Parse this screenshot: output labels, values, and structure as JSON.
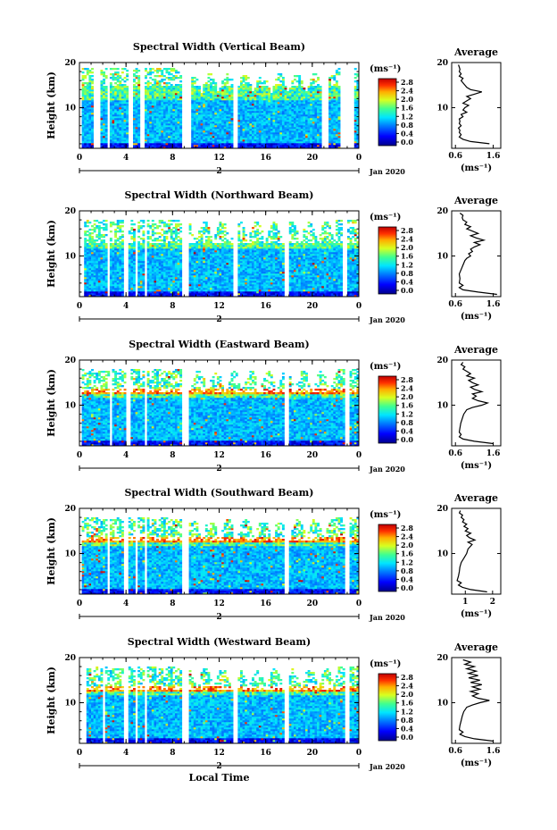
{
  "chart_data": [
    {
      "type": "heatmap",
      "title": "Spectral Width (Vertical Beam)",
      "ylabel": "Height (km)",
      "yticks": [
        "20",
        "10"
      ],
      "xticks": [
        "0",
        "4",
        "8",
        "12",
        "16",
        "20",
        "0"
      ],
      "xlim": [
        0,
        24
      ],
      "ylim": [
        1,
        20
      ],
      "date_marker": "2",
      "date_label": "Jan 2020",
      "colorbar": {
        "unit": "(ms⁻¹)",
        "ticks": [
          "2.8",
          "2.4",
          "2.0",
          "1.6",
          "1.2",
          "0.8",
          "0.4",
          "0.0"
        ]
      },
      "avg": {
        "title": "Average",
        "xticks": [
          "0.6",
          "1.6"
        ],
        "xlim": [
          0.5,
          1.8
        ],
        "xlabel": "(ms⁻¹)",
        "yticks": [
          "20",
          "10"
        ],
        "profile": [
          [
            1.5,
            2
          ],
          [
            1.0,
            2.5
          ],
          [
            0.8,
            3
          ],
          [
            0.7,
            3.5
          ],
          [
            0.75,
            4
          ],
          [
            0.7,
            4.5
          ],
          [
            0.72,
            5
          ],
          [
            0.68,
            5.5
          ],
          [
            0.75,
            6
          ],
          [
            0.7,
            6.5
          ],
          [
            0.72,
            7
          ],
          [
            0.7,
            7.5
          ],
          [
            0.8,
            8
          ],
          [
            0.75,
            8.5
          ],
          [
            0.9,
            9
          ],
          [
            0.8,
            9.5
          ],
          [
            0.85,
            10
          ],
          [
            0.95,
            10.5
          ],
          [
            0.8,
            11
          ],
          [
            0.9,
            11.5
          ],
          [
            1.0,
            12
          ],
          [
            0.9,
            12.5
          ],
          [
            1.1,
            13
          ],
          [
            1.3,
            13.5
          ],
          [
            1.0,
            14
          ],
          [
            0.9,
            14.5
          ],
          [
            0.85,
            15
          ],
          [
            0.8,
            15.5
          ],
          [
            0.75,
            16
          ],
          [
            0.8,
            16.5
          ],
          [
            0.7,
            17
          ],
          [
            0.75,
            17.5
          ],
          [
            0.7,
            18
          ],
          [
            0.72,
            18.5
          ],
          [
            0.7,
            19
          ],
          [
            0.68,
            19.5
          ]
        ]
      },
      "gaps": [
        [
          0,
          0.3
        ],
        [
          1.2,
          1.8
        ],
        [
          2.4,
          2.6
        ],
        [
          4.3,
          4.6
        ],
        [
          5.3,
          5.5
        ],
        [
          8.9,
          9.5
        ],
        [
          13.1,
          13.5
        ],
        [
          20.9,
          21.3
        ],
        [
          22.4,
          23.6
        ]
      ]
    },
    {
      "type": "heatmap",
      "title": "Spectral Width (Northward Beam)",
      "ylabel": "Height (km)",
      "yticks": [
        "20",
        "10"
      ],
      "xticks": [
        "0",
        "4",
        "8",
        "12",
        "16",
        "20",
        "0"
      ],
      "xlim": [
        0,
        24
      ],
      "ylim": [
        1,
        20
      ],
      "date_marker": "2",
      "date_label": "Jan 2020",
      "colorbar": {
        "unit": "(ms⁻¹)",
        "ticks": [
          "2.8",
          "2.4",
          "2.0",
          "1.6",
          "1.2",
          "0.8",
          "0.4",
          "0.0"
        ]
      },
      "avg": {
        "title": "Average",
        "xticks": [
          "0.6",
          "1.6"
        ],
        "xlim": [
          0.5,
          1.8
        ],
        "xlabel": "(ms⁻¹)",
        "yticks": [
          "20",
          "10"
        ],
        "profile": [
          [
            1.7,
            1.5
          ],
          [
            1.2,
            2
          ],
          [
            0.8,
            2.5
          ],
          [
            0.7,
            3
          ],
          [
            0.8,
            3.5
          ],
          [
            0.7,
            4
          ],
          [
            0.72,
            5
          ],
          [
            0.7,
            6
          ],
          [
            0.75,
            7
          ],
          [
            0.8,
            8
          ],
          [
            0.85,
            9
          ],
          [
            0.9,
            9.5
          ],
          [
            1.0,
            10
          ],
          [
            0.95,
            10.5
          ],
          [
            1.05,
            11
          ],
          [
            1.0,
            11.5
          ],
          [
            1.1,
            12
          ],
          [
            1.25,
            12.5
          ],
          [
            1.1,
            13
          ],
          [
            1.35,
            13.5
          ],
          [
            1.15,
            14
          ],
          [
            1.0,
            14.5
          ],
          [
            1.2,
            15
          ],
          [
            1.05,
            15.5
          ],
          [
            0.9,
            16
          ],
          [
            1.0,
            16.5
          ],
          [
            0.85,
            17
          ],
          [
            0.9,
            17.5
          ],
          [
            0.8,
            18
          ],
          [
            0.78,
            18.5
          ],
          [
            0.8,
            19
          ],
          [
            0.72,
            19.5
          ]
        ]
      },
      "gaps": [
        [
          0,
          0.4
        ],
        [
          2.4,
          2.6
        ],
        [
          3.9,
          4.1
        ],
        [
          4.8,
          5.0
        ],
        [
          5.6,
          5.8
        ],
        [
          8.9,
          9.3
        ],
        [
          13.2,
          13.5
        ],
        [
          17.7,
          17.9
        ],
        [
          22.7,
          23.0
        ]
      ]
    },
    {
      "type": "heatmap",
      "title": "Spectral Width (Eastward Beam)",
      "ylabel": "Height (km)",
      "yticks": [
        "20",
        "10"
      ],
      "xticks": [
        "0",
        "4",
        "8",
        "12",
        "16",
        "20",
        "0"
      ],
      "xlim": [
        0,
        24
      ],
      "ylim": [
        1,
        20
      ],
      "date_marker": "2",
      "date_label": "Jan 2020",
      "colorbar": {
        "unit": "(ms⁻¹)",
        "ticks": [
          "2.8",
          "2.4",
          "2.0",
          "1.6",
          "1.2",
          "0.8",
          "0.4",
          "0.0"
        ]
      },
      "avg": {
        "title": "Average",
        "xticks": [
          "0.6",
          "1.6"
        ],
        "xlim": [
          0.5,
          1.8
        ],
        "xlabel": "(ms⁻¹)",
        "yticks": [
          "20",
          "10"
        ],
        "profile": [
          [
            1.6,
            1.5
          ],
          [
            1.1,
            2
          ],
          [
            0.8,
            2.5
          ],
          [
            0.7,
            3
          ],
          [
            0.75,
            3.5
          ],
          [
            0.7,
            4
          ],
          [
            0.72,
            5
          ],
          [
            0.74,
            6
          ],
          [
            0.78,
            7
          ],
          [
            0.82,
            8
          ],
          [
            0.9,
            9
          ],
          [
            1.05,
            9.5
          ],
          [
            1.3,
            10
          ],
          [
            1.45,
            10.5
          ],
          [
            1.2,
            11
          ],
          [
            1.05,
            11.5
          ],
          [
            1.15,
            12
          ],
          [
            1.05,
            12.5
          ],
          [
            1.3,
            13
          ],
          [
            1.1,
            13.5
          ],
          [
            1.0,
            14
          ],
          [
            1.2,
            14.5
          ],
          [
            1.05,
            15
          ],
          [
            0.95,
            15.5
          ],
          [
            1.1,
            16
          ],
          [
            0.9,
            16.5
          ],
          [
            1.0,
            17
          ],
          [
            0.9,
            17.5
          ],
          [
            0.8,
            18
          ],
          [
            0.85,
            18.5
          ],
          [
            0.75,
            19
          ],
          [
            0.8,
            19.5
          ]
        ]
      },
      "gaps": [
        [
          0,
          0.3
        ],
        [
          2.6,
          2.8
        ],
        [
          4.1,
          4.3
        ],
        [
          5.6,
          5.8
        ],
        [
          8.9,
          9.3
        ],
        [
          17.7,
          17.9
        ],
        [
          22.9,
          23.1
        ]
      ]
    },
    {
      "type": "heatmap",
      "title": "Spectral Width (Southward Beam)",
      "ylabel": "Height (km)",
      "yticks": [
        "20",
        "10"
      ],
      "xticks": [
        "0",
        "4",
        "8",
        "12",
        "16",
        "20",
        "0"
      ],
      "xlim": [
        0,
        24
      ],
      "ylim": [
        1,
        20
      ],
      "date_marker": "2",
      "date_label": "Jan 2020",
      "colorbar": {
        "unit": "(ms⁻¹)",
        "ticks": [
          "2.8",
          "2.4",
          "2.0",
          "1.6",
          "1.2",
          "0.8",
          "0.4",
          "0.0"
        ]
      },
      "avg": {
        "title": "Average",
        "xticks": [
          "1",
          "2"
        ],
        "xlim": [
          0.5,
          2.3
        ],
        "xlabel": "(ms⁻¹)",
        "yticks": [
          "20",
          "10"
        ],
        "profile": [
          [
            1.8,
            1.5
          ],
          [
            1.2,
            2
          ],
          [
            0.9,
            2.5
          ],
          [
            0.75,
            3
          ],
          [
            0.85,
            3.5
          ],
          [
            0.7,
            4
          ],
          [
            0.75,
            5
          ],
          [
            0.78,
            6
          ],
          [
            0.8,
            7
          ],
          [
            0.85,
            8
          ],
          [
            0.95,
            9
          ],
          [
            1.05,
            10
          ],
          [
            1.1,
            11
          ],
          [
            1.25,
            12
          ],
          [
            1.1,
            12.5
          ],
          [
            1.35,
            13
          ],
          [
            1.15,
            13.5
          ],
          [
            1.05,
            14
          ],
          [
            1.2,
            14.5
          ],
          [
            1.0,
            15
          ],
          [
            1.1,
            15.5
          ],
          [
            0.95,
            16
          ],
          [
            1.05,
            16.5
          ],
          [
            0.9,
            17
          ],
          [
            0.95,
            17.5
          ],
          [
            0.85,
            18
          ],
          [
            0.9,
            18.5
          ],
          [
            0.78,
            19
          ],
          [
            0.82,
            19.5
          ]
        ]
      },
      "gaps": [
        [
          0,
          0.3
        ],
        [
          2.4,
          2.6
        ],
        [
          3.9,
          4.1
        ],
        [
          4.8,
          5.0
        ],
        [
          5.6,
          5.8
        ],
        [
          8.9,
          9.3
        ],
        [
          17.7,
          17.9
        ],
        [
          22.9,
          23.1
        ]
      ]
    },
    {
      "type": "heatmap",
      "title": "Spectral Width (Westward Beam)",
      "ylabel": "Height (km)",
      "yticks": [
        "20",
        "10"
      ],
      "xticks": [
        "0",
        "4",
        "8",
        "12",
        "16",
        "20",
        "0"
      ],
      "xlim": [
        0,
        24
      ],
      "ylim": [
        1,
        20
      ],
      "date_marker": "2",
      "date_label": "Jan 2020",
      "xlabel": "Local Time",
      "colorbar": {
        "unit": "(ms⁻¹)",
        "ticks": [
          "2.8",
          "2.4",
          "2.0",
          "1.6",
          "1.2",
          "0.8",
          "0.4",
          "0.0"
        ]
      },
      "avg": {
        "title": "Average",
        "xticks": [
          "0.6",
          "1.6"
        ],
        "xlim": [
          0.5,
          1.8
        ],
        "xlabel": "(ms⁻¹)",
        "yticks": [
          "20",
          "10"
        ],
        "profile": [
          [
            1.6,
            1.5
          ],
          [
            1.1,
            2
          ],
          [
            0.85,
            2.5
          ],
          [
            0.72,
            3
          ],
          [
            0.8,
            3.5
          ],
          [
            0.7,
            4
          ],
          [
            0.72,
            5
          ],
          [
            0.75,
            6
          ],
          [
            0.78,
            7
          ],
          [
            0.82,
            8
          ],
          [
            0.9,
            9
          ],
          [
            1.05,
            9.5
          ],
          [
            1.25,
            10
          ],
          [
            1.5,
            10.5
          ],
          [
            1.2,
            11
          ],
          [
            1.05,
            11.5
          ],
          [
            1.2,
            12
          ],
          [
            1.0,
            12.5
          ],
          [
            1.25,
            13
          ],
          [
            1.05,
            13.5
          ],
          [
            1.3,
            14
          ],
          [
            1.0,
            14.5
          ],
          [
            1.25,
            15
          ],
          [
            0.95,
            15.5
          ],
          [
            1.2,
            16
          ],
          [
            0.95,
            16.5
          ],
          [
            1.15,
            17
          ],
          [
            0.9,
            17.5
          ],
          [
            1.1,
            18
          ],
          [
            0.85,
            18.5
          ],
          [
            1.0,
            19
          ],
          [
            0.8,
            19.5
          ]
        ]
      },
      "gaps": [
        [
          0,
          0.5
        ],
        [
          2.0,
          2.3
        ],
        [
          3.9,
          4.1
        ],
        [
          4.8,
          5.0
        ],
        [
          5.6,
          5.8
        ],
        [
          8.9,
          9.3
        ],
        [
          13.2,
          13.5
        ],
        [
          17.7,
          17.9
        ],
        [
          22.9,
          23.1
        ]
      ]
    }
  ]
}
